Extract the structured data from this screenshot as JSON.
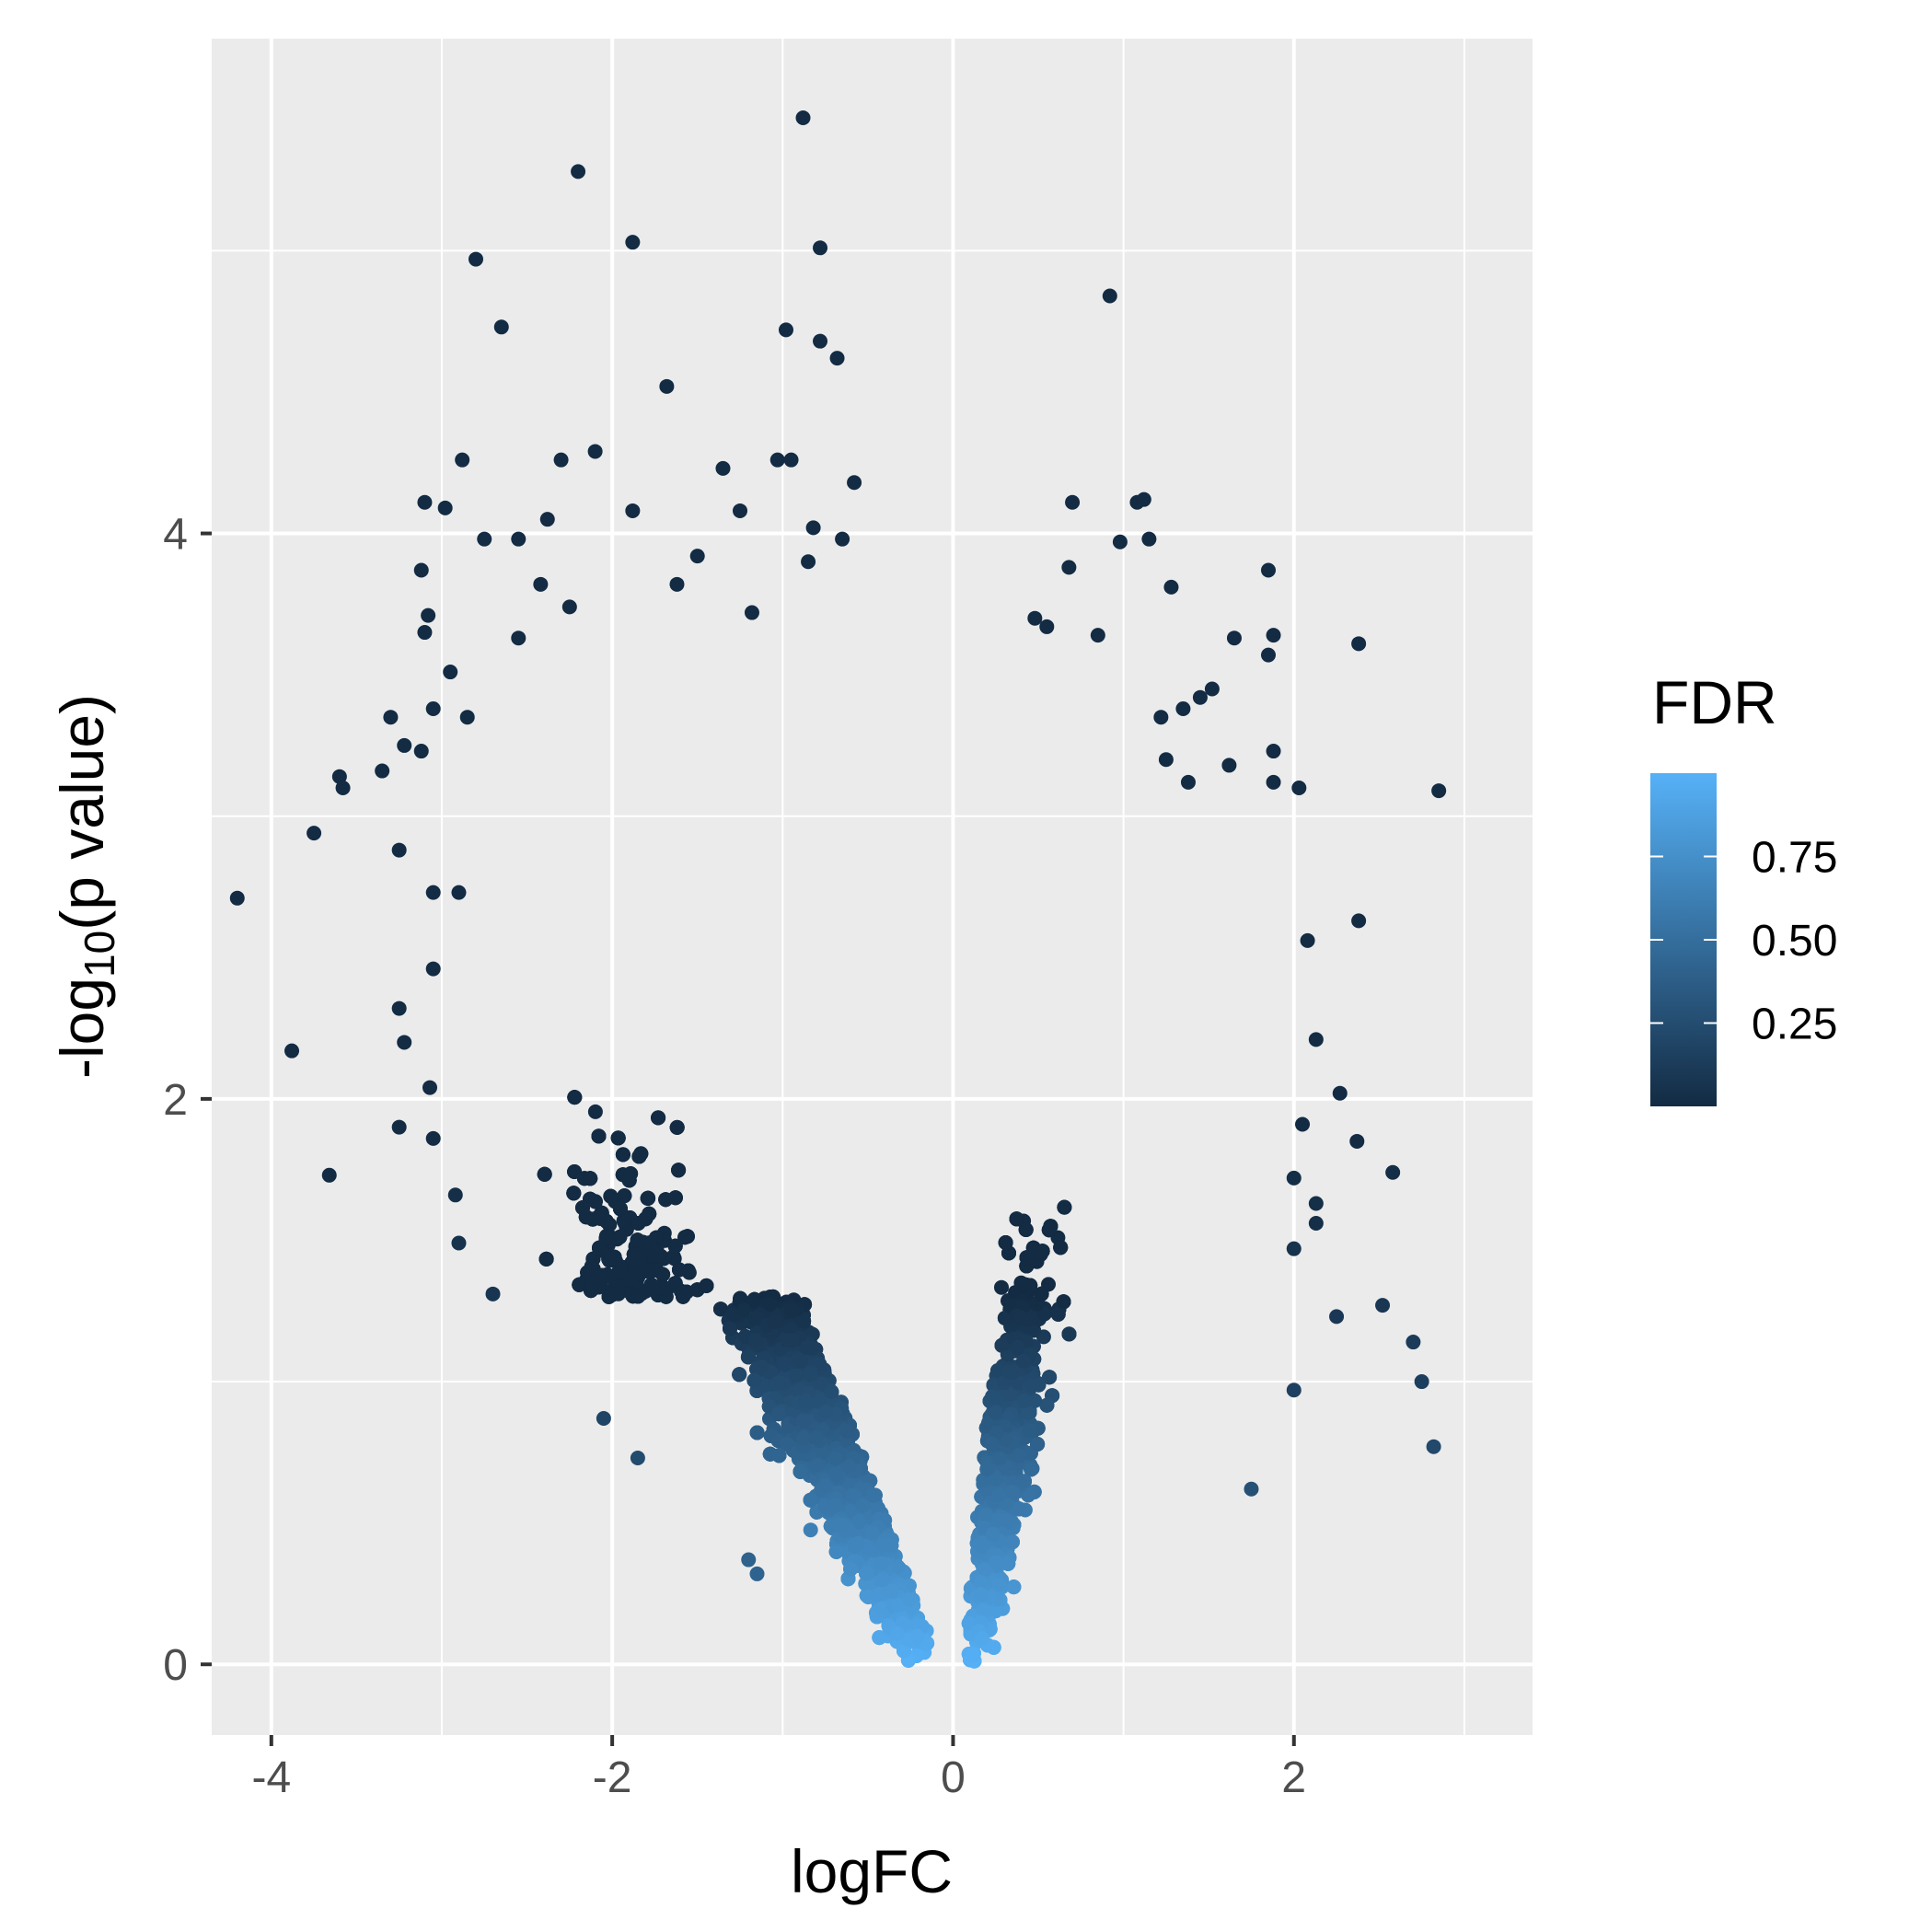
{
  "chart_data": {
    "type": "scatter",
    "title": "",
    "xlabel": "logFC",
    "ylabel_prefix": "-log",
    "ylabel_subscript": "10",
    "ylabel_suffix": "(p value)",
    "xlim": [
      -4.35,
      3.4
    ],
    "ylim": [
      -0.25,
      5.75
    ],
    "x_ticks": [
      -4,
      -2,
      0,
      2
    ],
    "x_tick_labels": [
      "-4",
      "-2",
      "0",
      "2"
    ],
    "y_ticks": [
      0,
      2,
      4
    ],
    "y_tick_labels": [
      "0",
      "2",
      "4"
    ],
    "grid": true,
    "panel_background": "#EBEBEB",
    "grid_color": "#FFFFFF",
    "legend": {
      "title": "FDR",
      "position": "right",
      "range": [
        0.0,
        1.0
      ],
      "breaks": [
        0.25,
        0.5,
        0.75
      ],
      "break_labels": [
        "0.25",
        "0.50",
        "0.75"
      ],
      "low_color": "#132B43",
      "high_color": "#56B1F7"
    },
    "series": [
      {
        "points": [
          {
            "x": -0.88,
            "y": 5.47,
            "fdr": 0.0
          },
          {
            "x": -2.2,
            "y": 5.28,
            "fdr": 0.0
          },
          {
            "x": -1.88,
            "y": 5.03,
            "fdr": 0.0
          },
          {
            "x": -2.8,
            "y": 4.97,
            "fdr": 0.0
          },
          {
            "x": -0.78,
            "y": 5.01,
            "fdr": 0.0
          },
          {
            "x": 0.92,
            "y": 4.84,
            "fdr": 0.0
          },
          {
            "x": -2.65,
            "y": 4.73,
            "fdr": 0.0
          },
          {
            "x": -0.98,
            "y": 4.72,
            "fdr": 0.0
          },
          {
            "x": -0.78,
            "y": 4.68,
            "fdr": 0.0
          },
          {
            "x": -0.68,
            "y": 4.62,
            "fdr": 0.0
          },
          {
            "x": -1.68,
            "y": 4.52,
            "fdr": 0.0
          },
          {
            "x": -2.88,
            "y": 4.26,
            "fdr": 0.0
          },
          {
            "x": -2.3,
            "y": 4.26,
            "fdr": 0.0
          },
          {
            "x": -2.1,
            "y": 4.29,
            "fdr": 0.0
          },
          {
            "x": -1.03,
            "y": 4.26,
            "fdr": 0.0
          },
          {
            "x": -0.95,
            "y": 4.26,
            "fdr": 0.0
          },
          {
            "x": -1.35,
            "y": 4.23,
            "fdr": 0.0
          },
          {
            "x": -0.58,
            "y": 4.18,
            "fdr": 0.0
          },
          {
            "x": -3.1,
            "y": 4.11,
            "fdr": 0.0
          },
          {
            "x": -2.98,
            "y": 4.09,
            "fdr": 0.0
          },
          {
            "x": -1.88,
            "y": 4.08,
            "fdr": 0.0
          },
          {
            "x": -1.25,
            "y": 4.08,
            "fdr": 0.0
          },
          {
            "x": 0.7,
            "y": 4.11,
            "fdr": 0.0
          },
          {
            "x": 1.08,
            "y": 4.11,
            "fdr": 0.0
          },
          {
            "x": 1.12,
            "y": 4.12,
            "fdr": 0.0
          },
          {
            "x": -2.38,
            "y": 4.05,
            "fdr": 0.0
          },
          {
            "x": -0.82,
            "y": 4.02,
            "fdr": 0.0
          },
          {
            "x": -2.75,
            "y": 3.98,
            "fdr": 0.0
          },
          {
            "x": -2.55,
            "y": 3.98,
            "fdr": 0.0
          },
          {
            "x": -0.65,
            "y": 3.98,
            "fdr": 0.0
          },
          {
            "x": 0.98,
            "y": 3.97,
            "fdr": 0.0
          },
          {
            "x": 1.15,
            "y": 3.98,
            "fdr": 0.0
          },
          {
            "x": -3.12,
            "y": 3.87,
            "fdr": 0.0
          },
          {
            "x": -1.5,
            "y": 3.92,
            "fdr": 0.0
          },
          {
            "x": -0.85,
            "y": 3.9,
            "fdr": 0.0
          },
          {
            "x": 0.68,
            "y": 3.88,
            "fdr": 0.0
          },
          {
            "x": 1.85,
            "y": 3.87,
            "fdr": 0.0
          },
          {
            "x": -2.42,
            "y": 3.82,
            "fdr": 0.0
          },
          {
            "x": -1.62,
            "y": 3.82,
            "fdr": 0.0
          },
          {
            "x": 1.28,
            "y": 3.81,
            "fdr": 0.0
          },
          {
            "x": -3.08,
            "y": 3.71,
            "fdr": 0.0
          },
          {
            "x": -2.25,
            "y": 3.74,
            "fdr": 0.0
          },
          {
            "x": -1.18,
            "y": 3.72,
            "fdr": 0.0
          },
          {
            "x": 0.48,
            "y": 3.7,
            "fdr": 0.0
          },
          {
            "x": 1.65,
            "y": 3.63,
            "fdr": 0.0
          },
          {
            "x": 2.38,
            "y": 3.61,
            "fdr": 0.0
          },
          {
            "x": -3.1,
            "y": 3.65,
            "fdr": 0.0
          },
          {
            "x": -2.55,
            "y": 3.63,
            "fdr": 0.0
          },
          {
            "x": 0.55,
            "y": 3.67,
            "fdr": 0.0
          },
          {
            "x": 0.85,
            "y": 3.64,
            "fdr": 0.0
          },
          {
            "x": 1.88,
            "y": 3.64,
            "fdr": 0.0
          },
          {
            "x": -2.95,
            "y": 3.51,
            "fdr": 0.0
          },
          {
            "x": -3.05,
            "y": 3.38,
            "fdr": 0.0
          },
          {
            "x": -3.3,
            "y": 3.35,
            "fdr": 0.0
          },
          {
            "x": -2.85,
            "y": 3.35,
            "fdr": 0.0
          },
          {
            "x": 1.85,
            "y": 3.57,
            "fdr": 0.0
          },
          {
            "x": 1.52,
            "y": 3.45,
            "fdr": 0.0
          },
          {
            "x": 1.45,
            "y": 3.42,
            "fdr": 0.0
          },
          {
            "x": 1.35,
            "y": 3.38,
            "fdr": 0.0
          },
          {
            "x": -3.22,
            "y": 3.25,
            "fdr": 0.0
          },
          {
            "x": -3.12,
            "y": 3.23,
            "fdr": 0.0
          },
          {
            "x": -3.6,
            "y": 3.14,
            "fdr": 0.0
          },
          {
            "x": -3.58,
            "y": 3.1,
            "fdr": 0.0
          },
          {
            "x": -3.35,
            "y": 3.16,
            "fdr": 0.0
          },
          {
            "x": 1.62,
            "y": 3.18,
            "fdr": 0.0
          },
          {
            "x": 1.88,
            "y": 3.23,
            "fdr": 0.0
          },
          {
            "x": 1.38,
            "y": 3.12,
            "fdr": 0.0
          },
          {
            "x": 1.88,
            "y": 3.12,
            "fdr": 0.0
          },
          {
            "x": 2.03,
            "y": 3.1,
            "fdr": 0.0
          },
          {
            "x": 2.85,
            "y": 3.09,
            "fdr": 0.0
          },
          {
            "x": 1.25,
            "y": 3.2,
            "fdr": 0.0
          },
          {
            "x": 1.22,
            "y": 3.35,
            "fdr": 0.0
          },
          {
            "x": -3.75,
            "y": 2.94,
            "fdr": 0.0
          },
          {
            "x": -3.25,
            "y": 2.88,
            "fdr": 0.0
          },
          {
            "x": -4.2,
            "y": 2.71,
            "fdr": 0.0
          },
          {
            "x": -3.05,
            "y": 2.73,
            "fdr": 0.0
          },
          {
            "x": -2.9,
            "y": 2.73,
            "fdr": 0.0
          },
          {
            "x": 2.38,
            "y": 2.63,
            "fdr": 0.0
          },
          {
            "x": 2.08,
            "y": 2.56,
            "fdr": 0.0
          },
          {
            "x": -3.05,
            "y": 2.46,
            "fdr": 0.0
          },
          {
            "x": -3.25,
            "y": 2.32,
            "fdr": 0.0
          },
          {
            "x": -3.22,
            "y": 2.2,
            "fdr": 0.0
          },
          {
            "x": -3.88,
            "y": 2.17,
            "fdr": 0.0
          },
          {
            "x": 2.13,
            "y": 2.21,
            "fdr": 0.0
          },
          {
            "x": -3.07,
            "y": 2.04,
            "fdr": 0.0
          },
          {
            "x": -3.25,
            "y": 1.9,
            "fdr": 0.0
          },
          {
            "x": -3.05,
            "y": 1.86,
            "fdr": 0.0
          },
          {
            "x": 2.27,
            "y": 2.02,
            "fdr": 0.0
          },
          {
            "x": 2.05,
            "y": 1.91,
            "fdr": 0.0
          },
          {
            "x": 2.37,
            "y": 1.85,
            "fdr": 0.0
          },
          {
            "x": -3.66,
            "y": 1.73,
            "fdr": 0.0
          },
          {
            "x": -2.92,
            "y": 1.66,
            "fdr": 0.03
          },
          {
            "x": 2.0,
            "y": 1.72,
            "fdr": 0.02
          },
          {
            "x": 2.58,
            "y": 1.74,
            "fdr": 0.02
          },
          {
            "x": 2.13,
            "y": 1.63,
            "fdr": 0.03
          },
          {
            "x": 2.13,
            "y": 1.56,
            "fdr": 0.03
          },
          {
            "x": -2.9,
            "y": 1.49,
            "fdr": 0.05
          },
          {
            "x": 2.0,
            "y": 1.47,
            "fdr": 0.05
          },
          {
            "x": -2.7,
            "y": 1.31,
            "fdr": 0.08
          },
          {
            "x": 2.52,
            "y": 1.27,
            "fdr": 0.09
          },
          {
            "x": 2.25,
            "y": 1.23,
            "fdr": 0.1
          },
          {
            "x": 2.7,
            "y": 1.14,
            "fdr": 0.12
          },
          {
            "x": 2.75,
            "y": 1.0,
            "fdr": 0.15
          },
          {
            "x": 2.0,
            "y": 0.97,
            "fdr": 0.16
          },
          {
            "x": 2.82,
            "y": 0.77,
            "fdr": 0.22
          },
          {
            "x": -2.05,
            "y": 0.87,
            "fdr": 0.19
          },
          {
            "x": -1.85,
            "y": 0.73,
            "fdr": 0.24
          },
          {
            "x": 1.75,
            "y": 0.62,
            "fdr": 0.28
          },
          {
            "x": -1.2,
            "y": 0.37,
            "fdr": 0.4
          },
          {
            "x": -1.15,
            "y": 0.32,
            "fdr": 0.42
          }
        ]
      }
    ]
  }
}
